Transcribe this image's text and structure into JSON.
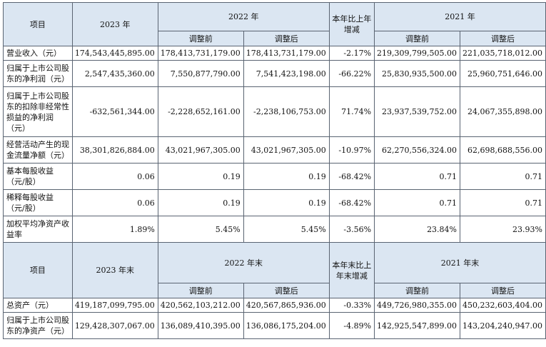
{
  "header1": {
    "item": "项目",
    "y2023": "2023 年",
    "y2022": "2022 年",
    "change": "本年比上年增减",
    "y2021": "2021 年",
    "before": "调整前",
    "after": "调整后"
  },
  "rows1": [
    {
      "label": "营业收入（元）",
      "v2023": "174,543,445,895.00",
      "v2022b": "178,413,731,179.00",
      "v2022a": "178,413,731,179.00",
      "chg": "-2.17%",
      "v2021b": "219,309,799,505.00",
      "v2021a": "221,035,718,012.00"
    },
    {
      "label": "归属于上市公司股东的净利润（元）",
      "v2023": "2,547,435,360.00",
      "v2022b": "7,550,877,790.00",
      "v2022a": "7,541,423,198.00",
      "chg": "-66.22%",
      "v2021b": "25,830,935,500.00",
      "v2021a": "25,960,751,646.00"
    },
    {
      "label": "归属于上市公司股东的扣除非经常性损益的净利润（元）",
      "v2023": "-632,561,344.00",
      "v2022b": "-2,228,652,161.00",
      "v2022a": "-2,238,106,753.00",
      "chg": "71.74%",
      "v2021b": "23,937,539,752.00",
      "v2021a": "24,067,355,898.00"
    },
    {
      "label": "经营活动产生的现金流量净额（元）",
      "v2023": "38,301,826,884.00",
      "v2022b": "43,021,967,305.00",
      "v2022a": "43,021,967,305.00",
      "chg": "-10.97%",
      "v2021b": "62,270,556,324.00",
      "v2021a": "62,698,688,556.00"
    },
    {
      "label": "基本每股收益（元/股）",
      "v2023": "0.06",
      "v2022b": "0.19",
      "v2022a": "0.19",
      "chg": "-68.42%",
      "v2021b": "0.71",
      "v2021a": "0.71"
    },
    {
      "label": "稀释每股收益（元/股）",
      "v2023": "0.06",
      "v2022b": "0.19",
      "v2022a": "0.19",
      "chg": "-68.42%",
      "v2021b": "0.71",
      "v2021a": "0.71"
    },
    {
      "label": "加权平均净资产收益率",
      "v2023": "1.89%",
      "v2022b": "5.45%",
      "v2022a": "5.45%",
      "chg": "-3.56%",
      "v2021b": "23.84%",
      "v2021a": "23.93%"
    }
  ],
  "header2": {
    "item": "项目",
    "y2023": "2023 年末",
    "y2022": "2022 年末",
    "change": "本年末比上年末增减",
    "y2021": "2021 年末",
    "before": "调整前",
    "after": "调整后"
  },
  "rows2": [
    {
      "label": "总资产（元）",
      "v2023": "419,187,099,795.00",
      "v2022b": "420,562,103,212.00",
      "v2022a": "420,567,865,936.00",
      "chg": "-0.33%",
      "v2021b": "449,726,980,355.00",
      "v2021a": "450,232,603,404.00"
    },
    {
      "label": "归属于上市公司股东的净资产（元）",
      "v2023": "129,428,307,067.00",
      "v2022b": "136,089,410,395.00",
      "v2022a": "136,086,175,204.00",
      "chg": "-4.89%",
      "v2021b": "142,925,547,899.00",
      "v2021a": "143,204,240,947.00"
    }
  ]
}
